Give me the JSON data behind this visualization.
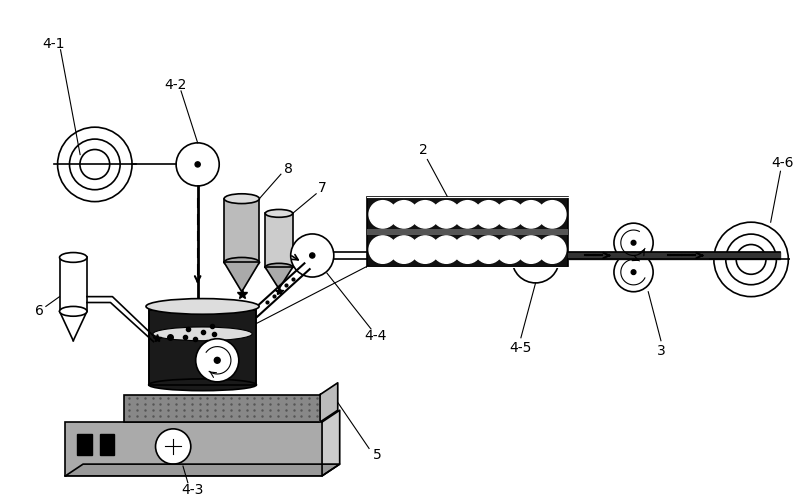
{
  "bg_color": "#ffffff",
  "black": "#000000",
  "gray_dark": "#333333",
  "gray_med": "#888888",
  "gray_light": "#cccccc",
  "gray_lighter": "#e0e0e0",
  "lw": 1.2
}
